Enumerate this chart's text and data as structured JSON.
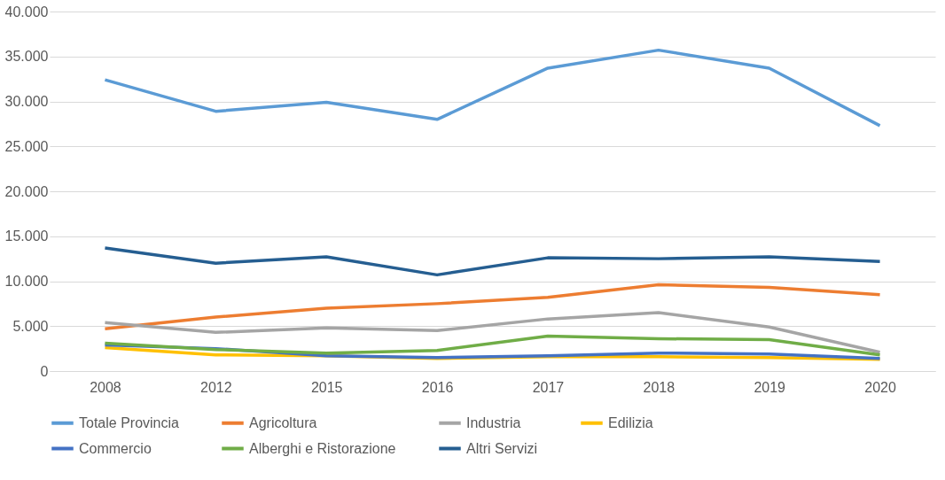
{
  "chart_data": {
    "type": "line",
    "categories": [
      "2008",
      "2012",
      "2015",
      "2016",
      "2017",
      "2018",
      "2019",
      "2020"
    ],
    "series": [
      {
        "name": "Totale Provincia",
        "color": "#5b9bd5",
        "values": [
          32400,
          28900,
          29900,
          28000,
          33700,
          35700,
          33700,
          27300
        ]
      },
      {
        "name": "Agricoltura",
        "color": "#ed7d31",
        "values": [
          4700,
          6000,
          7000,
          7500,
          8200,
          9600,
          9300,
          8500
        ]
      },
      {
        "name": "Industria",
        "color": "#a5a5a5",
        "values": [
          5400,
          4300,
          4800,
          4500,
          5800,
          6500,
          4900,
          2100
        ]
      },
      {
        "name": "Edilizia",
        "color": "#ffc000",
        "values": [
          2600,
          1800,
          1700,
          1400,
          1600,
          1600,
          1500,
          1300
        ]
      },
      {
        "name": "Commercio",
        "color": "#4472c4",
        "values": [
          2900,
          2500,
          1700,
          1500,
          1700,
          2000,
          1900,
          1400
        ]
      },
      {
        "name": "Alberghi e Ristorazione",
        "color": "#70ad47",
        "values": [
          3100,
          2400,
          2000,
          2300,
          3900,
          3600,
          3500,
          1800
        ]
      },
      {
        "name": "Altri Servizi",
        "color": "#255e91",
        "values": [
          13700,
          12000,
          12700,
          10700,
          12600,
          12500,
          12700,
          12200
        ]
      }
    ],
    "ylim": [
      0,
      40000
    ],
    "yticks": [
      {
        "value": 0,
        "label": "0"
      },
      {
        "value": 5000,
        "label": "5.000"
      },
      {
        "value": 10000,
        "label": "10.000"
      },
      {
        "value": 15000,
        "label": "15.000"
      },
      {
        "value": 20000,
        "label": "20.000"
      },
      {
        "value": 25000,
        "label": "25.000"
      },
      {
        "value": 30000,
        "label": "30.000"
      },
      {
        "value": 35000,
        "label": "35.000"
      },
      {
        "value": 40000,
        "label": "40.000"
      }
    ],
    "grid": "y",
    "legend": "bottom",
    "marker": "none",
    "line_style": "solid"
  }
}
